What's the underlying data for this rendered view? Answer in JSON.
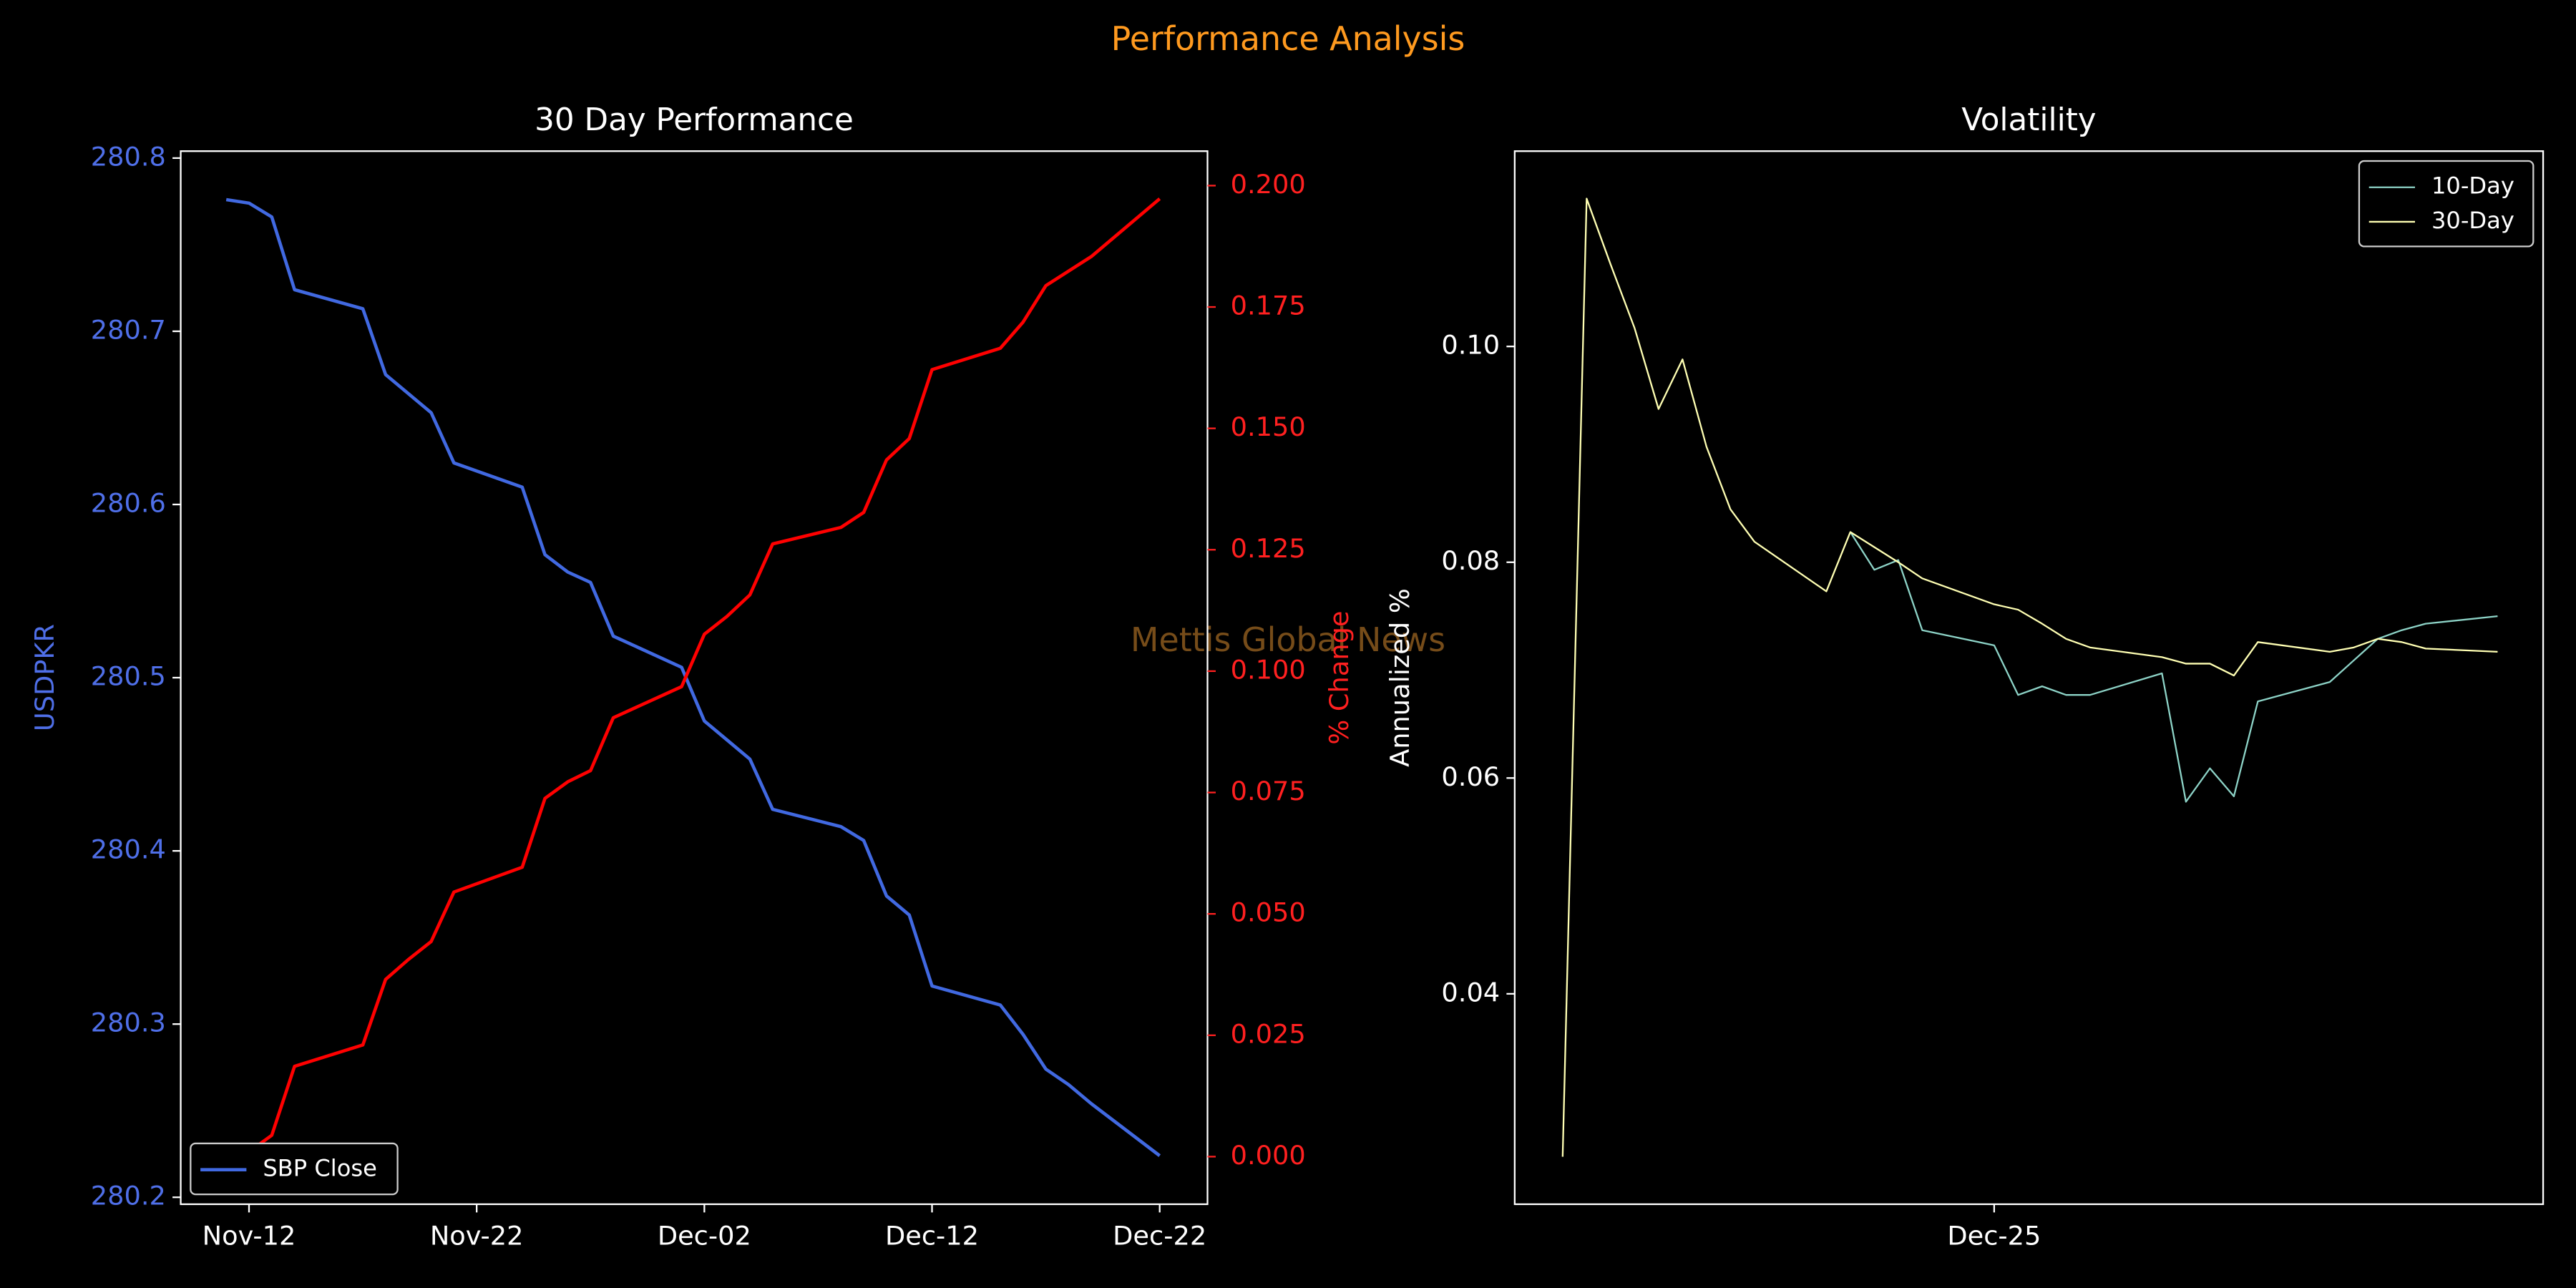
{
  "title": "Performance Analysis",
  "watermark": "Mettis Global News",
  "chart_data": [
    {
      "type": "line",
      "title": "30 Day Performance",
      "ylabel": "USDPKR",
      "y2label": "% Change",
      "ycolor": "#4f6fe8",
      "y2color": "#ff2020",
      "legend": "lower left",
      "x": [
        -1,
        0,
        1,
        2,
        5,
        6,
        7,
        8,
        9,
        12,
        13,
        14,
        15,
        16,
        19,
        20,
        21,
        22,
        23,
        26,
        27,
        28,
        29,
        30,
        33,
        34,
        35,
        36,
        37,
        40
      ],
      "xlim": [
        -3,
        42.1
      ],
      "xticks": [
        {
          "value": 0,
          "label": "Nov-12"
        },
        {
          "value": 10,
          "label": "Nov-22"
        },
        {
          "value": 20,
          "label": "Dec-02"
        },
        {
          "value": 30,
          "label": "Dec-12"
        },
        {
          "value": 40,
          "label": "Dec-22"
        }
      ],
      "ylim": [
        280.196,
        280.804
      ],
      "yticks": [
        280.2,
        280.3,
        280.4,
        280.5,
        280.6,
        280.7,
        280.8
      ],
      "y2lim": [
        -0.0098,
        0.2071
      ],
      "y2ticks": [
        {
          "value": 0,
          "label": "0.000"
        },
        {
          "value": 0.025,
          "label": "0.025"
        },
        {
          "value": 0.05,
          "label": "0.050"
        },
        {
          "value": 0.075,
          "label": "0.075"
        },
        {
          "value": 0.1,
          "label": "0.100"
        },
        {
          "value": 0.125,
          "label": "0.125"
        },
        {
          "value": 0.15,
          "label": "0.150"
        },
        {
          "value": 0.175,
          "label": "0.175"
        },
        {
          "value": 0.2,
          "label": "0.200"
        }
      ],
      "series": [
        {
          "name": "SBP Close",
          "color": "#4169e1",
          "width": 2,
          "values": [
            280.776,
            280.774,
            280.766,
            280.724,
            280.713,
            280.675,
            280.664,
            280.653,
            280.624,
            280.61,
            280.571,
            280.561,
            280.555,
            280.524,
            280.506,
            280.475,
            280.464,
            280.453,
            280.424,
            280.414,
            280.406,
            280.374,
            280.363,
            280.322,
            280.311,
            280.294,
            280.274,
            280.265,
            280.254,
            280.224
          ]
        },
        {
          "color": "#ff0000",
          "axis": "y2",
          "width": 2,
          "values": [
            0,
            0.001,
            0.0044,
            0.0186,
            0.023,
            0.0365,
            0.0406,
            0.0443,
            0.0545,
            0.0596,
            0.0738,
            0.0772,
            0.0795,
            0.0904,
            0.0968,
            0.1076,
            0.1113,
            0.1157,
            0.1262,
            0.1296,
            0.1327,
            0.1435,
            0.1479,
            0.1621,
            0.1665,
            0.1719,
            0.1794,
            0.1824,
            0.1854,
            0.1973
          ]
        }
      ]
    },
    {
      "type": "line",
      "title": "Volatility",
      "ylabel": "Annualized %",
      "ycolor": "#ffffff",
      "legend": "upper right",
      "x": [
        -18,
        -17,
        -16,
        -15,
        -14,
        -13,
        -12,
        -11,
        -10,
        -7,
        -6,
        -5,
        -4,
        -3,
        0,
        1,
        2,
        3,
        4,
        7,
        8,
        9,
        10,
        11,
        14,
        15,
        16,
        17,
        18,
        21
      ],
      "xlim": [
        -20,
        22.9
      ],
      "xticks": [
        {
          "value": 0,
          "label": "Dec-25"
        }
      ],
      "ylim": [
        0.0205,
        0.1181
      ],
      "yticks": [
        {
          "value": 0.04,
          "label": "0.04"
        },
        {
          "value": 0.06,
          "label": "0.06"
        },
        {
          "value": 0.08,
          "label": "0.08"
        },
        {
          "value": 0.1,
          "label": "0.10"
        }
      ],
      "series": [
        {
          "name": "10-Day",
          "color": "#8dd3c7",
          "width": 1,
          "values": [
            null,
            null,
            null,
            null,
            null,
            null,
            null,
            null,
            null,
            null,
            0.0828,
            0.0793,
            0.0802,
            0.0737,
            0.0723,
            0.0677,
            0.0685,
            0.0677,
            0.0677,
            0.0697,
            0.0578,
            0.0609,
            0.0583,
            0.0671,
            0.0689,
            0.0709,
            0.0729,
            0.0737,
            0.0743,
            0.075
          ]
        },
        {
          "name": "30-Day",
          "color": "#ffffb3",
          "width": 1,
          "values": [
            0.0249,
            0.1137,
            0.1076,
            0.1017,
            0.0942,
            0.0988,
            0.0907,
            0.0849,
            0.0819,
            0.0773,
            0.0828,
            0.0814,
            0.08,
            0.0785,
            0.0761,
            0.0756,
            0.0743,
            0.0729,
            0.0721,
            0.0712,
            0.0706,
            0.0706,
            0.0695,
            0.0726,
            0.0717,
            0.0721,
            0.0729,
            0.0726,
            0.072,
            0.0717
          ]
        }
      ]
    }
  ]
}
